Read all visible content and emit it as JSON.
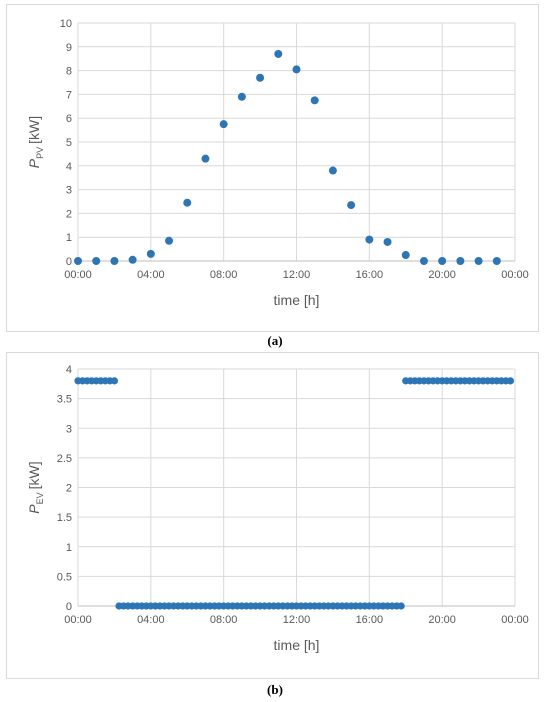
{
  "chart_data": [
    {
      "panel": "a",
      "type": "scatter",
      "caption": "(a)",
      "xlabel": "time [h]",
      "ylabel": {
        "symbol": "P",
        "subscript": "PV",
        "unit": "[kW]"
      },
      "xlim": [
        0,
        24
      ],
      "ylim": [
        0,
        10
      ],
      "yticks": [
        0,
        1,
        2,
        3,
        4,
        5,
        6,
        7,
        8,
        9,
        10
      ],
      "xticks": [
        0,
        4,
        8,
        12,
        16,
        20,
        24
      ],
      "xtick_labels": [
        "00:00",
        "04:00",
        "08:00",
        "12:00",
        "16:00",
        "20:00",
        "00:00"
      ],
      "grid": true,
      "series": [
        {
          "color": "#2e75b6",
          "x": [
            0,
            1,
            2,
            3,
            4,
            5,
            6,
            7,
            8,
            9,
            10,
            11,
            12,
            13,
            14,
            15,
            16,
            17,
            18,
            19,
            20,
            21,
            22,
            23
          ],
          "y": [
            0,
            0,
            0,
            0.05,
            0.3,
            0.85,
            2.45,
            4.3,
            5.75,
            6.9,
            7.7,
            8.7,
            8.05,
            6.75,
            3.8,
            2.35,
            0.9,
            0.8,
            0.25,
            0,
            0,
            0,
            0,
            0
          ]
        }
      ]
    },
    {
      "panel": "b",
      "type": "scatter",
      "caption": "(b)",
      "xlabel": "time [h]",
      "ylabel": {
        "symbol": "P",
        "subscript": "EV",
        "unit": "[kW]"
      },
      "xlim": [
        0,
        24
      ],
      "ylim": [
        0,
        4
      ],
      "yticks": [
        0,
        0.5,
        1,
        1.5,
        2,
        2.5,
        3,
        3.5,
        4
      ],
      "ytick_labels": [
        "0",
        "0.5",
        "1",
        "1.5",
        "2",
        "2.5",
        "3",
        "3.5",
        "4"
      ],
      "xticks": [
        0,
        4,
        8,
        12,
        16,
        20,
        24
      ],
      "xtick_labels": [
        "00:00",
        "04:00",
        "08:00",
        "12:00",
        "16:00",
        "20:00",
        "00:00"
      ],
      "grid": true,
      "sampling_step_h": 0.25,
      "series": [
        {
          "color": "#2e75b6",
          "segments": [
            {
              "x_from": 0,
              "x_to": 2,
              "value": 3.8
            },
            {
              "x_from": 2.25,
              "x_to": 17.75,
              "value": 0
            },
            {
              "x_from": 18,
              "x_to": 23.75,
              "value": 3.8
            }
          ]
        }
      ]
    }
  ]
}
